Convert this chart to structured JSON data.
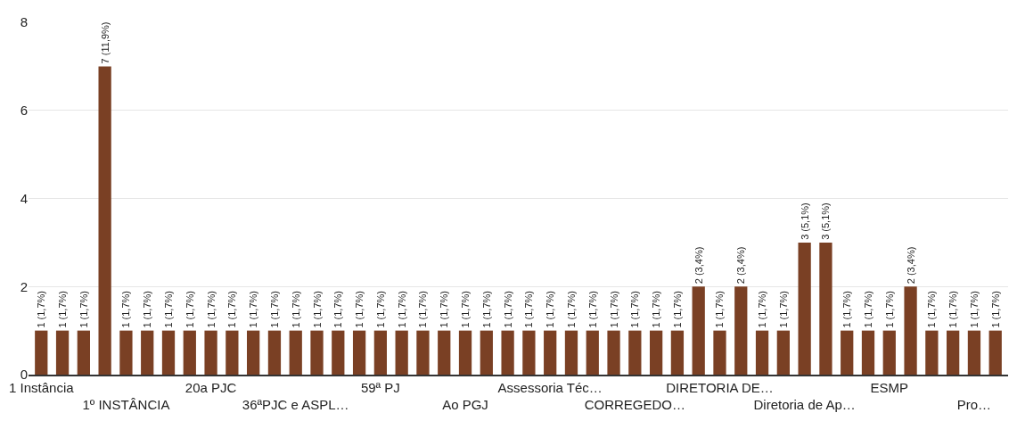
{
  "chart_data": {
    "type": "bar",
    "categories": [
      "1 Instância",
      null,
      null,
      null,
      "1º INSTÂNCIA",
      null,
      null,
      null,
      "20a PJC",
      null,
      null,
      null,
      "36ªPJC e ASPL…",
      null,
      null,
      null,
      "59ª PJ",
      null,
      null,
      null,
      "Ao PGJ",
      null,
      null,
      null,
      "Assessoria Téc…",
      null,
      null,
      null,
      "CORREGEDO…",
      null,
      null,
      null,
      "DIRETORIA DE…",
      null,
      null,
      null,
      "Diretoria de Ap…",
      null,
      null,
      null,
      "ESMP",
      null,
      null,
      null,
      "Pro…",
      null
    ],
    "values": [
      1,
      1,
      1,
      7,
      1,
      1,
      1,
      1,
      1,
      1,
      1,
      1,
      1,
      1,
      1,
      1,
      1,
      1,
      1,
      1,
      1,
      1,
      1,
      1,
      1,
      1,
      1,
      1,
      1,
      1,
      1,
      2,
      1,
      2,
      1,
      1,
      3,
      3,
      1,
      1,
      1,
      2,
      1,
      1,
      1,
      1
    ],
    "value_labels": [
      "1 (1,7%)",
      "1 (1,7%)",
      "1 (1,7%)",
      "7 (11,9%)",
      "1 (1,7%)",
      "1 (1,7%)",
      "1 (1,7%)",
      "1 (1,7%)",
      "1 (1,7%)",
      "1 (1,7%)",
      "1 (1,7%)",
      "1 (1,7%)",
      "1 (1,7%)",
      "1 (1,7%)",
      "1 (1,7%)",
      "1 (1,7%)",
      "1 (1,7%)",
      "1 (1,7%)",
      "1 (1,7%)",
      "1 (1,7%)",
      "1 (1,7%)",
      "1 (1,7%)",
      "1 (1,7%)",
      "1 (1,7%)",
      "1 (1,7%)",
      "1 (1,7%)",
      "1 (1,7%)",
      "1 (1,7%)",
      "1 (1,7%)",
      "1 (1,7%)",
      "1 (1,7%)",
      "2 (3,4%)",
      "1 (1,7%)",
      "2 (3,4%)",
      "1 (1,7%)",
      "1 (1,7%)",
      "3 (5,1%)",
      "3 (5,1%)",
      "1 (1,7%)",
      "1 (1,7%)",
      "1 (1,7%)",
      "2 (3,4%)",
      "1 (1,7%)",
      "1 (1,7%)",
      "1 (1,7%)",
      "1 (1,7%)"
    ],
    "color": "#7a4024",
    "ylim": [
      0,
      8
    ],
    "yticks": [
      0,
      2,
      4,
      6,
      8
    ],
    "grid": "y"
  }
}
